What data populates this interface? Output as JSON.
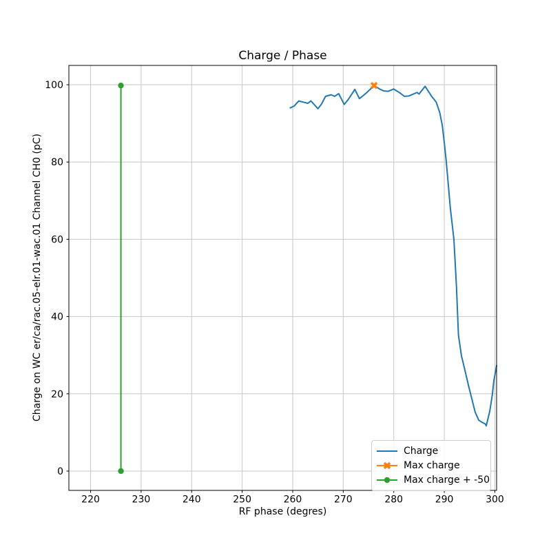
{
  "chart_data": {
    "type": "line",
    "title": "Charge / Phase",
    "xlabel": "RF phase (degres)",
    "ylabel": "Charge on WC er/ca/rac.05-elr.01-wac.01 Channel CH0 (pC)",
    "xlim": [
      215.7,
      300.35
    ],
    "ylim": [
      -5,
      105
    ],
    "xticks": [
      220,
      230,
      240,
      250,
      260,
      270,
      280,
      290,
      300
    ],
    "yticks": [
      0,
      20,
      40,
      60,
      80,
      100
    ],
    "grid": true,
    "legend_position": "lower right",
    "series": [
      {
        "name": "Charge",
        "color": "#1f77b4",
        "marker": "none",
        "points": [
          [
            259.5,
            94.0
          ],
          [
            260.3,
            94.5
          ],
          [
            261.2,
            95.8
          ],
          [
            262.1,
            95.5
          ],
          [
            263.0,
            95.2
          ],
          [
            263.6,
            95.8
          ],
          [
            265.0,
            93.8
          ],
          [
            265.7,
            95.0
          ],
          [
            266.5,
            97.0
          ],
          [
            267.6,
            97.4
          ],
          [
            268.3,
            97.0
          ],
          [
            269.1,
            97.7
          ],
          [
            270.2,
            94.9
          ],
          [
            271.0,
            96.2
          ],
          [
            272.3,
            98.8
          ],
          [
            273.2,
            96.4
          ],
          [
            274.6,
            97.9
          ],
          [
            276.1,
            99.8
          ],
          [
            277.2,
            98.9
          ],
          [
            278.0,
            98.4
          ],
          [
            278.9,
            98.3
          ],
          [
            280.0,
            98.9
          ],
          [
            281.2,
            97.9
          ],
          [
            282.1,
            97.0
          ],
          [
            283.0,
            97.1
          ],
          [
            284.6,
            98.0
          ],
          [
            285.0,
            97.6
          ],
          [
            286.2,
            99.6
          ],
          [
            287.5,
            97.0
          ],
          [
            288.4,
            95.5
          ],
          [
            289.1,
            92.8
          ],
          [
            289.6,
            89.5
          ],
          [
            290.0,
            85.0
          ],
          [
            290.4,
            80.0
          ],
          [
            291.2,
            68.0
          ],
          [
            291.9,
            60.0
          ],
          [
            292.4,
            48.0
          ],
          [
            292.8,
            35.2
          ],
          [
            293.4,
            29.8
          ],
          [
            294.1,
            26.0
          ],
          [
            294.8,
            22.1
          ],
          [
            295.6,
            17.9
          ],
          [
            296.1,
            15.3
          ],
          [
            296.8,
            13.2
          ],
          [
            297.5,
            12.6
          ],
          [
            298.1,
            12.2
          ],
          [
            298.3,
            11.7
          ],
          [
            299.0,
            15.5
          ],
          [
            299.5,
            19.7
          ],
          [
            299.8,
            23.3
          ],
          [
            300.35,
            27.3
          ]
        ]
      },
      {
        "name": "Max charge",
        "color": "#ff7f0e",
        "marker": "X",
        "points": [
          [
            276.1,
            99.8
          ]
        ]
      },
      {
        "name": "Max charge + -50",
        "color": "#2ca02c",
        "marker": "o",
        "points": [
          [
            226.0,
            0.0
          ],
          [
            226.0,
            99.8
          ]
        ]
      }
    ],
    "colors": {
      "grid": "#c6c6c6",
      "spine": "#000000",
      "tick_text": "#000000",
      "background": "#ffffff",
      "legend_border": "#cccccc"
    }
  }
}
